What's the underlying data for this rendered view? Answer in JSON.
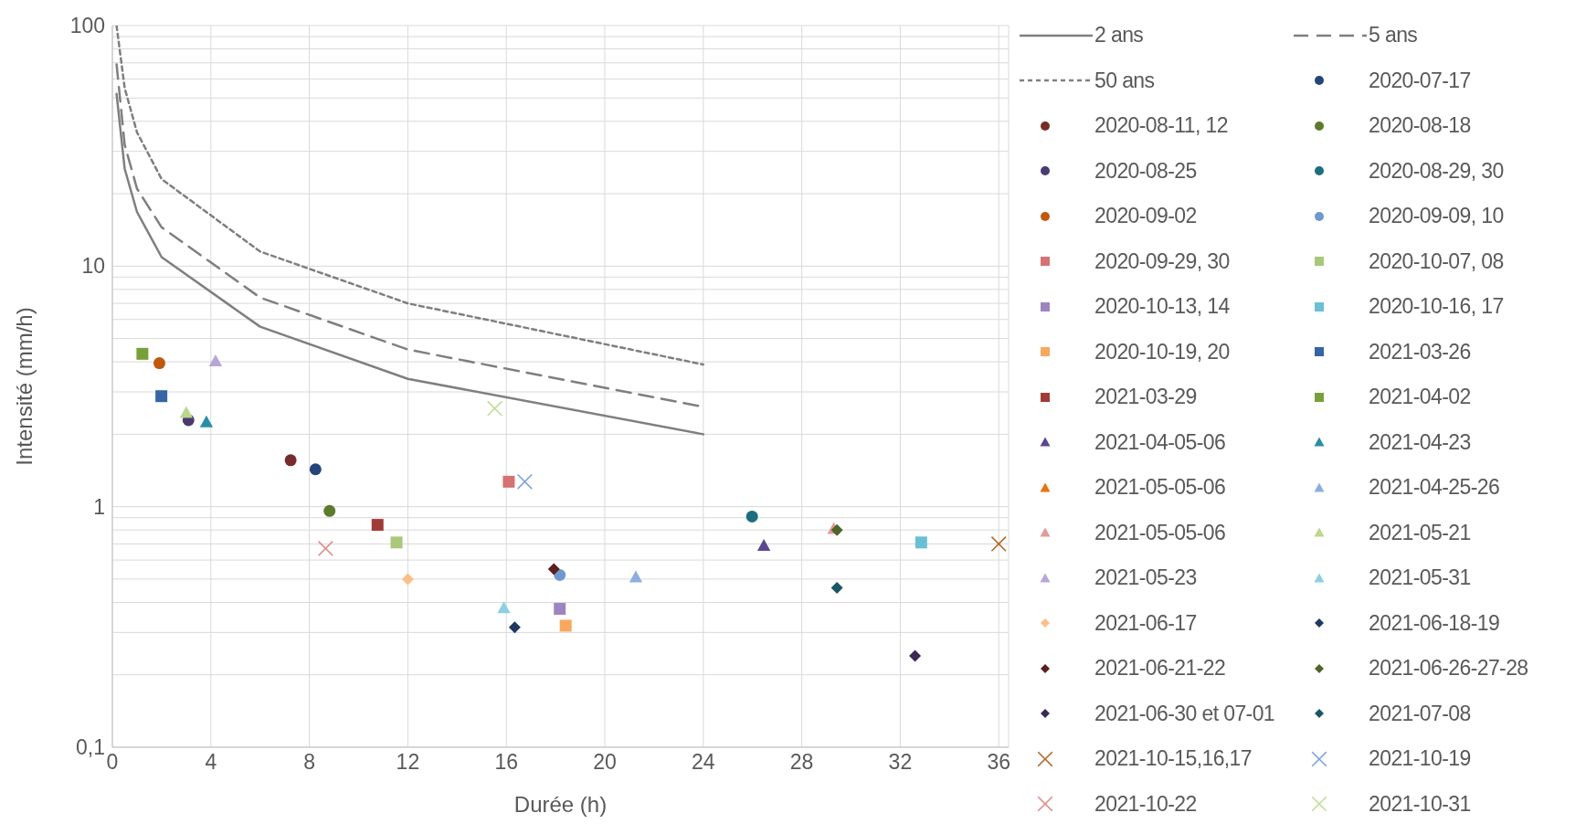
{
  "chart_data": {
    "type": "scatter",
    "xlabel": "Durée (h)",
    "ylabel": "Intensité (mm/h)",
    "xlim": [
      0,
      36.4
    ],
    "xticks": [
      0,
      4,
      8,
      12,
      16,
      20,
      24,
      28,
      32,
      36
    ],
    "ylim": [
      0.1,
      100
    ],
    "log": "y",
    "grid": true,
    "legend": "right",
    "yticks": [
      {
        "value": 0.1,
        "label": "0,1"
      },
      {
        "value": 0.2,
        "label": null
      },
      {
        "value": 0.3,
        "label": null
      },
      {
        "value": 0.4,
        "label": null
      },
      {
        "value": 0.5,
        "label": null
      },
      {
        "value": 0.6,
        "label": null
      },
      {
        "value": 0.7,
        "label": null
      },
      {
        "value": 0.8,
        "label": null
      },
      {
        "value": 0.9,
        "label": null
      },
      1,
      {
        "value": 2,
        "label": null
      },
      {
        "value": 3,
        "label": null
      },
      {
        "value": 4,
        "label": null
      },
      {
        "value": 5,
        "label": null
      },
      {
        "value": 6,
        "label": null
      },
      {
        "value": 7,
        "label": null
      },
      {
        "value": 8,
        "label": null
      },
      {
        "value": 9,
        "label": null
      },
      10,
      {
        "value": 20,
        "label": null
      },
      {
        "value": 30,
        "label": null
      },
      {
        "value": 40,
        "label": null
      },
      {
        "value": 50,
        "label": null
      },
      {
        "value": 60,
        "label": null
      },
      {
        "value": 70,
        "label": null
      },
      {
        "value": 80,
        "label": null
      },
      {
        "value": 90,
        "label": null
      },
      100
    ],
    "series": [
      {
        "name": "2 ans",
        "type": "line",
        "line_style": "solid",
        "marker": "none",
        "color": "#7f7f7f",
        "x": [
          0.17,
          0.5,
          1,
          2,
          6,
          12,
          24
        ],
        "values": [
          52,
          25.4,
          16.8,
          10.9,
          5.6,
          3.4,
          2.0
        ]
      },
      {
        "name": "5 ans",
        "type": "line",
        "line_style": "dashed",
        "marker": "none",
        "color": "#7f7f7f",
        "x": [
          0.17,
          0.5,
          1,
          2,
          6,
          12,
          24
        ],
        "values": [
          69,
          32,
          21,
          14.5,
          7.4,
          4.5,
          2.6
        ]
      },
      {
        "name": "50 ans",
        "type": "line",
        "line_style": "dotted",
        "marker": "none",
        "color": "#7f7f7f",
        "x": [
          0.17,
          0.5,
          1,
          2,
          6,
          12,
          24
        ],
        "values": [
          100,
          55,
          36,
          23,
          11.5,
          7.0,
          3.9
        ]
      },
      {
        "name": "2020-07-17",
        "marker": "circle",
        "color": "#264478",
        "x": [
          8.25
        ],
        "values": [
          1.43
        ]
      },
      {
        "name": "2020-08-11, 12",
        "marker": "circle",
        "color": "#772c2a",
        "x": [
          7.24
        ],
        "values": [
          1.56
        ]
      },
      {
        "name": "2020-08-18",
        "marker": "circle",
        "color": "#5e7a2c",
        "x": [
          8.82
        ],
        "values": [
          0.96
        ]
      },
      {
        "name": "2020-08-25",
        "marker": "circle",
        "color": "#4a3a6e",
        "x": [
          3.09
        ],
        "values": [
          2.29
        ]
      },
      {
        "name": "2020-08-29, 30",
        "marker": "circle",
        "color": "#1f6e80",
        "x": [
          25.98
        ],
        "values": [
          0.91
        ]
      },
      {
        "name": "2020-09-02",
        "marker": "circle",
        "color": "#c0580e",
        "x": [
          1.91
        ],
        "values": [
          3.95
        ]
      },
      {
        "name": "2020-09-09, 10",
        "marker": "circle",
        "color": "#6e98d0",
        "x": [
          18.17
        ],
        "values": [
          0.52
        ]
      },
      {
        "name": "2020-09-29, 30",
        "marker": "square",
        "color": "#d57373",
        "x": [
          16.1
        ],
        "values": [
          1.27
        ]
      },
      {
        "name": "2020-10-07, 08",
        "marker": "square",
        "color": "#a9c97a",
        "x": [
          11.54
        ],
        "values": [
          0.71
        ]
      },
      {
        "name": "2020-10-13, 14",
        "marker": "square",
        "color": "#9e85c0",
        "x": [
          18.17
        ],
        "values": [
          0.376
        ]
      },
      {
        "name": "2020-10-16, 17",
        "marker": "square",
        "color": "#6bbfd4",
        "x": [
          32.85
        ],
        "values": [
          0.71
        ]
      },
      {
        "name": "2020-10-19, 20",
        "marker": "square",
        "color": "#f8a85e",
        "x": [
          18.41
        ],
        "values": [
          0.32
        ]
      },
      {
        "name": "2021-03-26",
        "marker": "square",
        "color": "#3565a5",
        "x": [
          1.99
        ],
        "values": [
          2.88
        ]
      },
      {
        "name": "2021-03-29",
        "marker": "square",
        "color": "#a23a38",
        "x": [
          10.77
        ],
        "values": [
          0.84
        ]
      },
      {
        "name": "2021-04-02",
        "marker": "square",
        "color": "#77a03b",
        "x": [
          1.22
        ],
        "values": [
          4.32
        ]
      },
      {
        "name": "2021-04-05-06",
        "marker": "triangle",
        "color": "#5c4690",
        "x": [
          26.46
        ],
        "values": [
          0.69
        ]
      },
      {
        "name": "2021-04-23",
        "marker": "triangle",
        "color": "#2a8ea8",
        "x": [
          3.82
        ],
        "values": [
          2.25
        ]
      },
      {
        "name": "2021-05-05-06",
        "marker": "triangle",
        "color": "#f0700a",
        "x": [
          null
        ],
        "values": [
          null
        ]
      },
      {
        "name": "2021-04-25-26",
        "marker": "triangle",
        "color": "#8eaee0",
        "x": [
          21.26
        ],
        "values": [
          0.51
        ]
      },
      {
        "name": "2021-05-05-06",
        "marker": "triangle",
        "color": "#e59a9a",
        "x": [
          29.3
        ],
        "values": [
          0.81
        ]
      },
      {
        "name": "2021-05-21",
        "marker": "triangle",
        "color": "#bcd68e",
        "x": [
          3.0
        ],
        "values": [
          2.46
        ]
      },
      {
        "name": "2021-05-23",
        "marker": "triangle",
        "color": "#b8a6d6",
        "x": [
          4.19
        ],
        "values": [
          4.03
        ]
      },
      {
        "name": "2021-05-31",
        "marker": "triangle",
        "color": "#8dd0e0",
        "x": [
          15.9
        ],
        "values": [
          0.38
        ]
      },
      {
        "name": "2021-06-17",
        "marker": "diamond",
        "color": "#fbbf88",
        "x": [
          12.0
        ],
        "values": [
          0.5
        ]
      },
      {
        "name": "2021-06-18-19",
        "marker": "diamond",
        "color": "#1f3a60",
        "x": [
          16.34
        ],
        "values": [
          0.315
        ]
      },
      {
        "name": "2021-06-21-22",
        "marker": "diamond",
        "color": "#5a1f1e",
        "x": [
          17.93
        ],
        "values": [
          0.55
        ]
      },
      {
        "name": "2021-06-26-27-28",
        "marker": "diamond",
        "color": "#4e6628",
        "x": [
          29.43
        ],
        "values": [
          0.8
        ]
      },
      {
        "name": "2021-06-30 et 07-01",
        "marker": "diamond",
        "color": "#3b2a55",
        "x": [
          32.6
        ],
        "values": [
          0.24
        ]
      },
      {
        "name": "2021-07-08",
        "marker": "diamond",
        "color": "#1a5666",
        "x": [
          29.43
        ],
        "values": [
          0.46
        ]
      },
      {
        "name": "2021-10-15,16,17",
        "marker": "cross",
        "color": "#b0682a",
        "x": [
          36.0
        ],
        "values": [
          0.7
        ]
      },
      {
        "name": "2021-10-19",
        "marker": "cross",
        "color": "#7aa2e0",
        "x": [
          16.75
        ],
        "values": [
          1.27
        ]
      },
      {
        "name": "2021-10-22",
        "marker": "cross",
        "color": "#e08a8a",
        "x": [
          8.66
        ],
        "values": [
          0.67
        ]
      },
      {
        "name": "2021-10-31",
        "marker": "cross",
        "color": "#c2dc98",
        "x": [
          15.53
        ],
        "values": [
          2.56
        ]
      }
    ]
  }
}
